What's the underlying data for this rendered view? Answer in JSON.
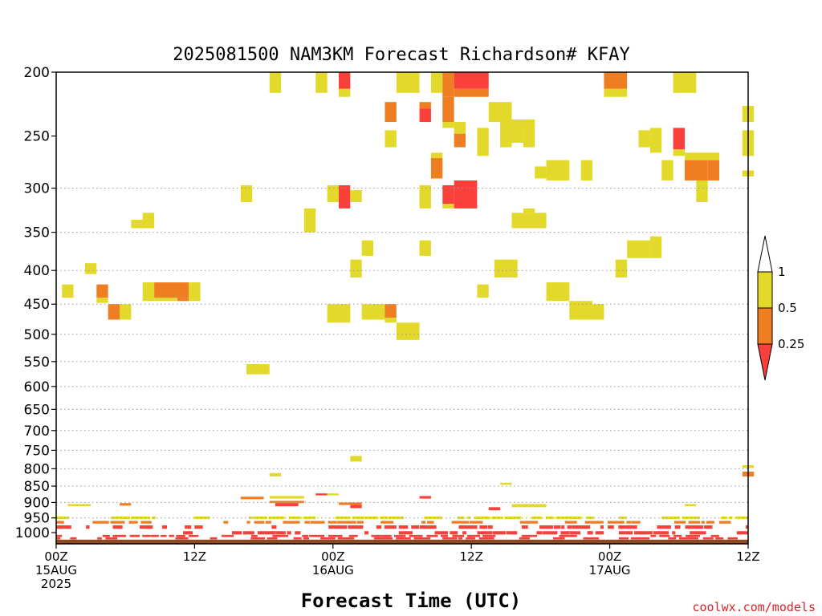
{
  "chart_data": {
    "type": "heatmap",
    "title": "2025081500 NAM3KM Forecast Richardson# KFAY",
    "xlabel": "Forecast Time (UTC)",
    "credit": "coolwx.com/models",
    "x_unit": "forecast hour",
    "xlim": [
      0,
      60
    ],
    "y_levels": [
      200,
      250,
      300,
      350,
      400,
      450,
      500,
      550,
      600,
      650,
      700,
      750,
      800,
      850,
      900,
      950,
      1000
    ],
    "ylim": [
      200,
      1040
    ],
    "y_scale": "log-pressure",
    "grid": "dotted horizontal at 300, 350, 400, 450, 500, 550, 600, 650, 700, 750, 800, 850, 900, 950",
    "x_ticks": [
      {
        "x": 0,
        "lines": [
          "00Z",
          "15AUG",
          "2025"
        ]
      },
      {
        "x": 12,
        "lines": [
          "12Z"
        ]
      },
      {
        "x": 24,
        "lines": [
          "00Z",
          "16AUG"
        ]
      },
      {
        "x": 36,
        "lines": [
          "12Z"
        ]
      },
      {
        "x": 48,
        "lines": [
          "00Z",
          "17AUG"
        ]
      },
      {
        "x": 60,
        "lines": [
          "12Z"
        ]
      }
    ],
    "colorbar": {
      "boundaries": [
        "1",
        "0.5",
        "0.25"
      ],
      "bins": [
        {
          "range": "> 1",
          "color": "#ffffff"
        },
        {
          "range": "0.5 - 1",
          "color": "#e3d92a"
        },
        {
          "range": "0.25 - 0.5",
          "color": "#ef7e22"
        },
        {
          "range": "< 0.25",
          "color": "#fa403a"
        }
      ]
    },
    "surface_band": {
      "p1": 1025,
      "p2": 1040,
      "color": "#8b4a22"
    },
    "cells": [
      {
        "x1": 18.5,
        "x2": 19.5,
        "p1": 200,
        "p2": 215,
        "c": "y"
      },
      {
        "x1": 22.5,
        "x2": 23.5,
        "p1": 200,
        "p2": 215,
        "c": "y"
      },
      {
        "x1": 24.5,
        "x2": 25.5,
        "p1": 200,
        "p2": 212,
        "c": "r"
      },
      {
        "x1": 24.5,
        "x2": 25.5,
        "p1": 212,
        "p2": 218,
        "c": "y"
      },
      {
        "x1": 29.5,
        "x2": 31.5,
        "p1": 200,
        "p2": 215,
        "c": "y"
      },
      {
        "x1": 32.5,
        "x2": 33.5,
        "p1": 200,
        "p2": 215,
        "c": "y"
      },
      {
        "x1": 33.5,
        "x2": 34.5,
        "p1": 200,
        "p2": 218,
        "c": "o"
      },
      {
        "x1": 34.5,
        "x2": 37.5,
        "p1": 200,
        "p2": 212,
        "c": "r"
      },
      {
        "x1": 34.5,
        "x2": 37.5,
        "p1": 212,
        "p2": 218,
        "c": "o"
      },
      {
        "x1": 47.5,
        "x2": 49.5,
        "p1": 200,
        "p2": 212,
        "c": "o"
      },
      {
        "x1": 47.5,
        "x2": 49.5,
        "p1": 212,
        "p2": 218,
        "c": "y"
      },
      {
        "x1": 53.5,
        "x2": 55.5,
        "p1": 200,
        "p2": 215,
        "c": "y"
      },
      {
        "x1": 28.5,
        "x2": 29.5,
        "p1": 222,
        "p2": 238,
        "c": "o"
      },
      {
        "x1": 31.5,
        "x2": 32.5,
        "p1": 222,
        "p2": 227,
        "c": "o"
      },
      {
        "x1": 31.5,
        "x2": 32.5,
        "p1": 227,
        "p2": 238,
        "c": "r"
      },
      {
        "x1": 33.5,
        "x2": 34.5,
        "p1": 218,
        "p2": 238,
        "c": "o"
      },
      {
        "x1": 33.5,
        "x2": 34.5,
        "p1": 238,
        "p2": 243,
        "c": "y"
      },
      {
        "x1": 37.5,
        "x2": 39.5,
        "p1": 222,
        "p2": 238,
        "c": "y"
      },
      {
        "x1": 39.5,
        "x2": 40.5,
        "p1": 236,
        "p2": 256,
        "c": "y"
      },
      {
        "x1": 38.5,
        "x2": 41.5,
        "p1": 236,
        "p2": 241,
        "c": "y"
      },
      {
        "x1": 40.5,
        "x2": 41.5,
        "p1": 236,
        "p2": 260,
        "c": "y"
      },
      {
        "x1": 59.5,
        "x2": 60.5,
        "p1": 225,
        "p2": 238,
        "c": "y"
      },
      {
        "x1": 28.5,
        "x2": 29.5,
        "p1": 245,
        "p2": 260,
        "c": "y"
      },
      {
        "x1": 34.5,
        "x2": 35.5,
        "p1": 238,
        "p2": 248,
        "c": "y"
      },
      {
        "x1": 34.5,
        "x2": 35.5,
        "p1": 248,
        "p2": 260,
        "c": "o"
      },
      {
        "x1": 36.5,
        "x2": 37.5,
        "p1": 243,
        "p2": 268,
        "c": "y"
      },
      {
        "x1": 38.5,
        "x2": 39.5,
        "p1": 238,
        "p2": 260,
        "c": "y"
      },
      {
        "x1": 50.5,
        "x2": 51.5,
        "p1": 245,
        "p2": 260,
        "c": "y"
      },
      {
        "x1": 51.5,
        "x2": 52.5,
        "p1": 243,
        "p2": 265,
        "c": "y"
      },
      {
        "x1": 53.5,
        "x2": 54.5,
        "p1": 243,
        "p2": 262,
        "c": "r"
      },
      {
        "x1": 53.5,
        "x2": 54.5,
        "p1": 262,
        "p2": 268,
        "c": "y"
      },
      {
        "x1": 59.5,
        "x2": 60.5,
        "p1": 245,
        "p2": 268,
        "c": "y"
      },
      {
        "x1": 32.5,
        "x2": 33.5,
        "p1": 265,
        "p2": 270,
        "c": "y"
      },
      {
        "x1": 32.5,
        "x2": 33.5,
        "p1": 270,
        "p2": 290,
        "c": "o"
      },
      {
        "x1": 41.5,
        "x2": 42.5,
        "p1": 278,
        "p2": 290,
        "c": "y"
      },
      {
        "x1": 42.5,
        "x2": 44.5,
        "p1": 272,
        "p2": 292,
        "c": "y"
      },
      {
        "x1": 45.5,
        "x2": 46.5,
        "p1": 272,
        "p2": 292,
        "c": "y"
      },
      {
        "x1": 52.5,
        "x2": 53.5,
        "p1": 272,
        "p2": 292,
        "c": "y"
      },
      {
        "x1": 54.5,
        "x2": 57.5,
        "p1": 265,
        "p2": 272,
        "c": "y"
      },
      {
        "x1": 54.5,
        "x2": 56.5,
        "p1": 272,
        "p2": 292,
        "c": "o"
      },
      {
        "x1": 56.5,
        "x2": 57.5,
        "p1": 272,
        "p2": 292,
        "c": "o"
      },
      {
        "x1": 55.5,
        "x2": 56.5,
        "p1": 292,
        "p2": 297,
        "c": "y"
      },
      {
        "x1": 59.5,
        "x2": 60.5,
        "p1": 282,
        "p2": 288,
        "c": "y"
      },
      {
        "x1": 16.0,
        "x2": 17.0,
        "p1": 297,
        "p2": 315,
        "c": "y"
      },
      {
        "x1": 23.5,
        "x2": 24.5,
        "p1": 297,
        "p2": 315,
        "c": "y"
      },
      {
        "x1": 24.5,
        "x2": 25.5,
        "p1": 297,
        "p2": 322,
        "c": "r"
      },
      {
        "x1": 25.5,
        "x2": 26.5,
        "p1": 302,
        "p2": 315,
        "c": "y"
      },
      {
        "x1": 31.5,
        "x2": 32.5,
        "p1": 297,
        "p2": 322,
        "c": "y"
      },
      {
        "x1": 33.5,
        "x2": 34.5,
        "p1": 297,
        "p2": 317,
        "c": "r"
      },
      {
        "x1": 33.5,
        "x2": 34.5,
        "p1": 317,
        "p2": 322,
        "c": "y"
      },
      {
        "x1": 34.5,
        "x2": 36.5,
        "p1": 292,
        "p2": 322,
        "c": "r"
      },
      {
        "x1": 55.5,
        "x2": 56.5,
        "p1": 297,
        "p2": 315,
        "c": "y"
      },
      {
        "x1": 6.5,
        "x2": 8.5,
        "p1": 335,
        "p2": 345,
        "c": "y"
      },
      {
        "x1": 7.5,
        "x2": 8.5,
        "p1": 327,
        "p2": 345,
        "c": "y"
      },
      {
        "x1": 21.5,
        "x2": 22.5,
        "p1": 322,
        "p2": 350,
        "c": "y"
      },
      {
        "x1": 39.5,
        "x2": 42.5,
        "p1": 327,
        "p2": 345,
        "c": "y"
      },
      {
        "x1": 40.5,
        "x2": 41.5,
        "p1": 322,
        "p2": 327,
        "c": "y"
      },
      {
        "x1": 26.5,
        "x2": 27.5,
        "p1": 360,
        "p2": 380,
        "c": "y"
      },
      {
        "x1": 31.5,
        "x2": 32.5,
        "p1": 360,
        "p2": 380,
        "c": "y"
      },
      {
        "x1": 49.5,
        "x2": 51.5,
        "p1": 360,
        "p2": 383,
        "c": "y"
      },
      {
        "x1": 51.5,
        "x2": 52.5,
        "p1": 355,
        "p2": 383,
        "c": "y"
      },
      {
        "x1": 2.5,
        "x2": 3.5,
        "p1": 390,
        "p2": 405,
        "c": "y"
      },
      {
        "x1": 25.5,
        "x2": 26.5,
        "p1": 385,
        "p2": 410,
        "c": "y"
      },
      {
        "x1": 38.0,
        "x2": 40.0,
        "p1": 385,
        "p2": 410,
        "c": "y"
      },
      {
        "x1": 48.5,
        "x2": 49.5,
        "p1": 385,
        "p2": 410,
        "c": "y"
      },
      {
        "x1": 0.5,
        "x2": 1.5,
        "p1": 420,
        "p2": 440,
        "c": "y"
      },
      {
        "x1": 3.5,
        "x2": 4.5,
        "p1": 420,
        "p2": 440,
        "c": "o"
      },
      {
        "x1": 3.5,
        "x2": 4.5,
        "p1": 440,
        "p2": 448,
        "c": "y"
      },
      {
        "x1": 7.5,
        "x2": 8.5,
        "p1": 417,
        "p2": 445,
        "c": "y"
      },
      {
        "x1": 8.5,
        "x2": 11.5,
        "p1": 417,
        "p2": 440,
        "c": "o"
      },
      {
        "x1": 8.5,
        "x2": 10.5,
        "p1": 440,
        "p2": 445,
        "c": "y"
      },
      {
        "x1": 10.5,
        "x2": 11.5,
        "p1": 440,
        "p2": 445,
        "c": "o"
      },
      {
        "x1": 11.5,
        "x2": 12.5,
        "p1": 417,
        "p2": 445,
        "c": "y"
      },
      {
        "x1": 36.5,
        "x2": 37.5,
        "p1": 420,
        "p2": 440,
        "c": "y"
      },
      {
        "x1": 42.5,
        "x2": 44.5,
        "p1": 417,
        "p2": 445,
        "c": "y"
      },
      {
        "x1": 4.5,
        "x2": 5.5,
        "p1": 450,
        "p2": 475,
        "c": "o"
      },
      {
        "x1": 5.5,
        "x2": 6.5,
        "p1": 450,
        "p2": 475,
        "c": "y"
      },
      {
        "x1": 23.5,
        "x2": 25.5,
        "p1": 450,
        "p2": 480,
        "c": "y"
      },
      {
        "x1": 26.5,
        "x2": 28.5,
        "p1": 450,
        "p2": 475,
        "c": "y"
      },
      {
        "x1": 28.5,
        "x2": 29.5,
        "p1": 450,
        "p2": 472,
        "c": "o"
      },
      {
        "x1": 28.5,
        "x2": 29.5,
        "p1": 472,
        "p2": 480,
        "c": "y"
      },
      {
        "x1": 44.5,
        "x2": 46.5,
        "p1": 445,
        "p2": 475,
        "c": "y"
      },
      {
        "x1": 46.5,
        "x2": 47.5,
        "p1": 450,
        "p2": 475,
        "c": "y"
      },
      {
        "x1": 29.5,
        "x2": 31.5,
        "p1": 480,
        "p2": 510,
        "c": "y"
      },
      {
        "x1": 16.5,
        "x2": 18.5,
        "p1": 555,
        "p2": 575,
        "c": "y"
      },
      {
        "x1": 25.5,
        "x2": 26.5,
        "p1": 765,
        "p2": 780,
        "c": "y"
      },
      {
        "x1": 59.5,
        "x2": 60.5,
        "p1": 790,
        "p2": 798,
        "c": "y"
      },
      {
        "x1": 59.5,
        "x2": 60.5,
        "p1": 808,
        "p2": 822,
        "c": "o"
      },
      {
        "x1": 18.5,
        "x2": 19.5,
        "p1": 812,
        "p2": 822,
        "c": "y"
      },
      {
        "x1": 38.5,
        "x2": 39.5,
        "p1": 840,
        "p2": 846,
        "c": "y"
      },
      {
        "x1": 16.0,
        "x2": 18.0,
        "p1": 882,
        "p2": 890,
        "c": "o"
      },
      {
        "x1": 18.5,
        "x2": 21.5,
        "p1": 880,
        "p2": 888,
        "c": "y"
      },
      {
        "x1": 22.5,
        "x2": 23.5,
        "p1": 872,
        "p2": 878,
        "c": "r"
      },
      {
        "x1": 23.5,
        "x2": 24.5,
        "p1": 872,
        "p2": 878,
        "c": "y"
      },
      {
        "x1": 31.5,
        "x2": 32.5,
        "p1": 880,
        "p2": 888,
        "c": "r"
      },
      {
        "x1": 1.0,
        "x2": 3.0,
        "p1": 905,
        "p2": 912,
        "c": "y"
      },
      {
        "x1": 5.5,
        "x2": 6.5,
        "p1": 902,
        "p2": 910,
        "c": "o"
      },
      {
        "x1": 18.5,
        "x2": 21.5,
        "p1": 895,
        "p2": 902,
        "c": "o"
      },
      {
        "x1": 19.0,
        "x2": 21.0,
        "p1": 902,
        "p2": 912,
        "c": "r"
      },
      {
        "x1": 24.5,
        "x2": 26.5,
        "p1": 900,
        "p2": 908,
        "c": "o"
      },
      {
        "x1": 25.5,
        "x2": 26.5,
        "p1": 908,
        "p2": 918,
        "c": "r"
      },
      {
        "x1": 39.5,
        "x2": 42.5,
        "p1": 905,
        "p2": 915,
        "c": "y"
      },
      {
        "x1": 37.5,
        "x2": 38.5,
        "p1": 915,
        "p2": 925,
        "c": "r"
      },
      {
        "x1": 54.5,
        "x2": 55.5,
        "p1": 905,
        "p2": 912,
        "c": "y"
      },
      {
        "x1": 0.0,
        "x2": 60.0,
        "p1": 945,
        "p2": 955,
        "c": "y",
        "pattern": "spotty"
      },
      {
        "x1": 0.0,
        "x2": 60.0,
        "p1": 960,
        "p2": 970,
        "c": "o",
        "pattern": "spotty"
      },
      {
        "x1": 0.0,
        "x2": 60.0,
        "p1": 975,
        "p2": 988,
        "c": "r",
        "pattern": "spotty"
      },
      {
        "x1": 11.0,
        "x2": 60.0,
        "p1": 995,
        "p2": 1008,
        "c": "r",
        "pattern": "spotty"
      },
      {
        "x1": 0.0,
        "x2": 60.0,
        "p1": 1008,
        "p2": 1025,
        "c": "r",
        "pattern": "spotty"
      }
    ]
  }
}
